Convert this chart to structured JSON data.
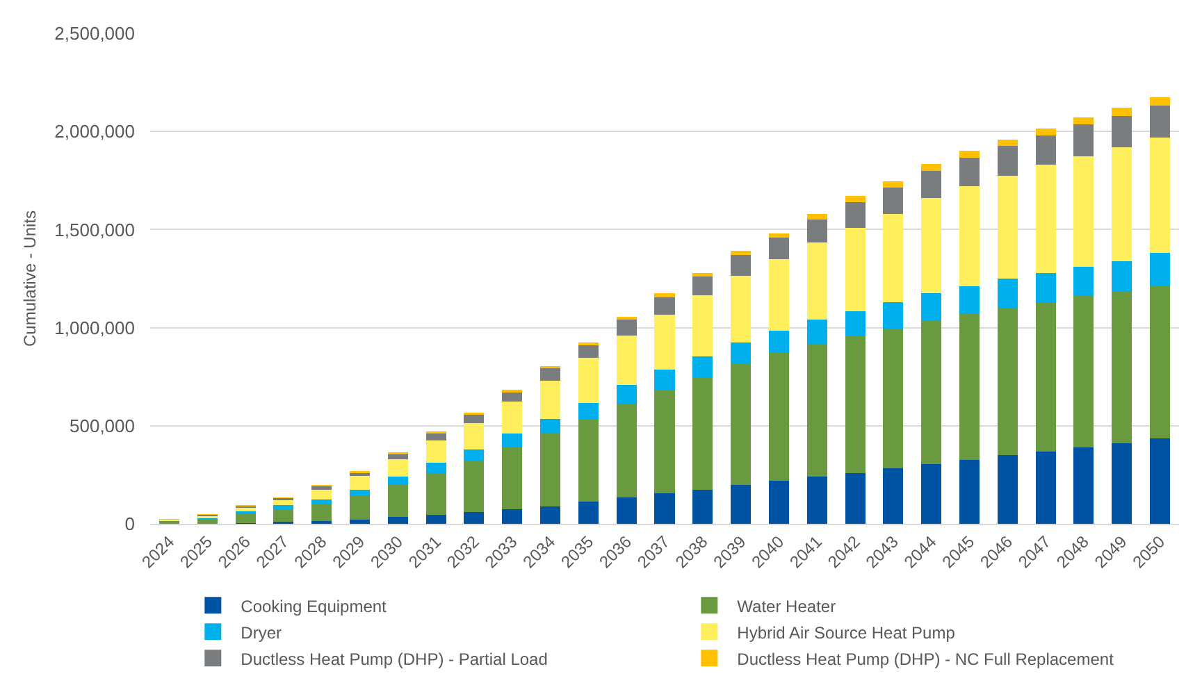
{
  "chart_data": {
    "type": "bar",
    "stacked": true,
    "ylabel": "Cumulative - Units",
    "categories": [
      "2024",
      "2025",
      "2026",
      "2027",
      "2028",
      "2029",
      "2030",
      "2031",
      "2032",
      "2033",
      "2034",
      "2035",
      "2036",
      "2037",
      "2038",
      "2039",
      "2040",
      "2041",
      "2042",
      "2043",
      "2044",
      "2045",
      "2046",
      "2047",
      "2048",
      "2049",
      "2050"
    ],
    "series": [
      {
        "name": "Cooking Equipment",
        "color": "#0052a2",
        "values": [
          0,
          0,
          5000,
          10000,
          15000,
          20000,
          35000,
          45000,
          60000,
          75000,
          90000,
          115000,
          135000,
          155000,
          175000,
          200000,
          220000,
          240000,
          260000,
          285000,
          305000,
          325000,
          350000,
          370000,
          390000,
          410000,
          435000
        ]
      },
      {
        "name": "Water Heater",
        "color": "#6a9a40",
        "values": [
          15000,
          25000,
          45000,
          65000,
          85000,
          125000,
          165000,
          215000,
          260000,
          315000,
          375000,
          420000,
          475000,
          525000,
          570000,
          615000,
          650000,
          675000,
          700000,
          710000,
          730000,
          745000,
          750000,
          760000,
          770000,
          775000,
          780000
        ]
      },
      {
        "name": "Dryer",
        "color": "#00b0ed",
        "values": [
          0,
          5000,
          15000,
          20000,
          25000,
          30000,
          40000,
          50000,
          60000,
          70000,
          70000,
          80000,
          100000,
          105000,
          110000,
          110000,
          115000,
          125000,
          125000,
          135000,
          140000,
          140000,
          150000,
          150000,
          150000,
          155000,
          165000
        ]
      },
      {
        "name": "Hybrid Air Source Heat Pump",
        "color": "#ffef5c",
        "values": [
          5000,
          10000,
          15000,
          25000,
          50000,
          70000,
          90000,
          115000,
          135000,
          165000,
          195000,
          230000,
          250000,
          280000,
          310000,
          340000,
          365000,
          395000,
          425000,
          450000,
          485000,
          510000,
          525000,
          550000,
          565000,
          580000,
          590000
        ]
      },
      {
        "name": "Ductless Heat Pump (DHP) - Partial Load",
        "color": "#797d80",
        "values": [
          0,
          5000,
          10000,
          10000,
          15000,
          15000,
          25000,
          35000,
          40000,
          45000,
          65000,
          65000,
          80000,
          90000,
          95000,
          105000,
          110000,
          115000,
          130000,
          135000,
          140000,
          145000,
          150000,
          150000,
          160000,
          160000,
          160000
        ]
      },
      {
        "name": "Ductless Heat Pump (DHP) - NC Full Replacement",
        "color": "#ffc000",
        "values": [
          5000,
          5000,
          5000,
          5000,
          10000,
          10000,
          10000,
          10000,
          10000,
          15000,
          10000,
          15000,
          15000,
          20000,
          20000,
          20000,
          20000,
          30000,
          30000,
          30000,
          35000,
          35000,
          35000,
          35000,
          35000,
          40000,
          45000
        ]
      }
    ],
    "ylim": [
      0,
      2500000
    ],
    "yticks": [
      {
        "value": 0,
        "label": "0"
      },
      {
        "value": 500000,
        "label": "500,000"
      },
      {
        "value": 1000000,
        "label": "1,000,000"
      },
      {
        "value": 1500000,
        "label": "1,500,000"
      },
      {
        "value": 2000000,
        "label": "2,000,000"
      },
      {
        "value": 2500000,
        "label": "2,500,000"
      }
    ],
    "grid": "y",
    "legend": "bottom"
  }
}
